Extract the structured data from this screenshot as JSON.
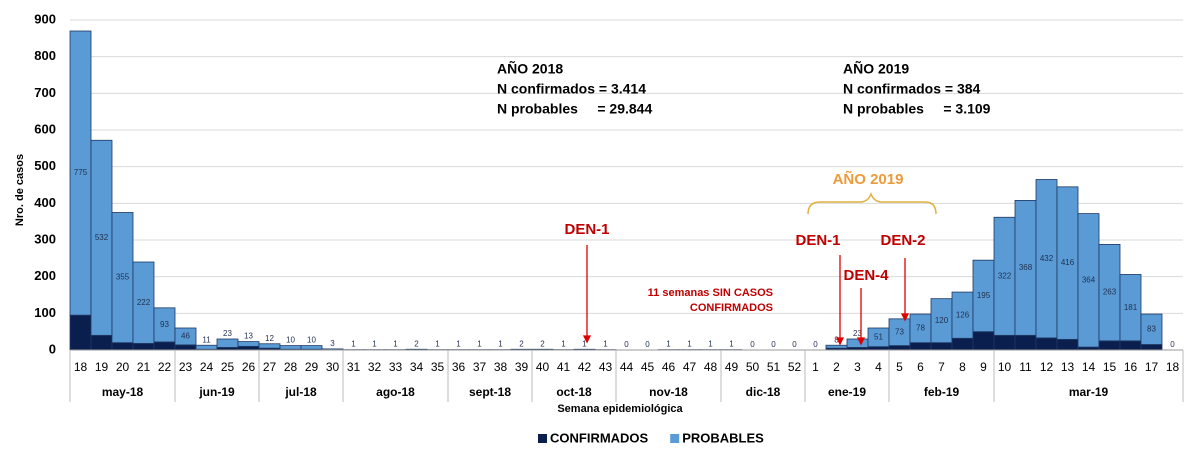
{
  "chart_data": {
    "type": "stacked_bar",
    "y_label": "Nro. de casos",
    "x_label": "Semana epidemiológica",
    "categories": [
      "18",
      "19",
      "20",
      "21",
      "22",
      "23",
      "24",
      "25",
      "26",
      "27",
      "28",
      "29",
      "30",
      "31",
      "32",
      "33",
      "34",
      "35",
      "36",
      "37",
      "38",
      "39",
      "40",
      "41",
      "42",
      "43",
      "44",
      "45",
      "46",
      "47",
      "48",
      "49",
      "50",
      "51",
      "52",
      "1",
      "2",
      "3",
      "4",
      "5",
      "6",
      "7",
      "8",
      "9",
      "10",
      "11",
      "12",
      "13",
      "14",
      "15",
      "16",
      "17",
      "18"
    ],
    "groups": [
      {
        "label": "may-18",
        "span": 5
      },
      {
        "label": "jun-19",
        "span": 4
      },
      {
        "label": "jul-18",
        "span": 4
      },
      {
        "label": "ago-18",
        "span": 5
      },
      {
        "label": "sept-18",
        "span": 4
      },
      {
        "label": "oct-18",
        "span": 4
      },
      {
        "label": "nov-18",
        "span": 5
      },
      {
        "label": "dic-18",
        "span": 4
      },
      {
        "label": "ene-19",
        "span": 4
      },
      {
        "label": "feb-19",
        "span": 5
      },
      {
        "label": "mar-19",
        "span": 9
      }
    ],
    "series": [
      {
        "name": "CONFIRMADOS",
        "color": "#0b1f4f",
        "values": [
          95,
          40,
          20,
          18,
          22,
          14,
          2,
          7,
          10,
          5,
          2,
          2,
          0,
          0,
          0,
          0,
          0,
          0,
          0,
          0,
          0,
          0,
          0,
          0,
          1,
          0,
          0,
          0,
          0,
          0,
          0,
          0,
          0,
          0,
          0,
          0,
          5,
          7,
          9,
          12,
          20,
          20,
          32,
          50,
          40,
          40,
          33,
          29,
          8,
          25,
          25,
          15,
          0
        ]
      },
      {
        "name": "PROBABLES",
        "color": "#5b9bd5",
        "values": [
          775,
          532,
          355,
          222,
          93,
          46,
          11,
          23,
          13,
          12,
          10,
          10,
          3,
          1,
          1,
          1,
          2,
          1,
          1,
          1,
          1,
          2,
          2,
          1,
          1,
          1,
          0,
          0,
          1,
          1,
          1,
          1,
          0,
          0,
          0,
          0,
          8,
          23,
          51,
          73,
          78,
          120,
          126,
          195,
          322,
          368,
          432,
          416,
          364,
          263,
          181,
          83,
          0
        ]
      }
    ],
    "ylim": [
      0,
      900
    ],
    "yticks": [
      0,
      100,
      200,
      300,
      400,
      500,
      600,
      700,
      800,
      900
    ],
    "grid": true,
    "annotations": {
      "y2018": [
        "AÑO 2018",
        "N confirmados = 3.414",
        "N probables     = 29.844"
      ],
      "y2019": [
        "AÑO 2019",
        "N confirmados = 384",
        "N probables     = 3.109"
      ],
      "bracket": "AÑO 2019",
      "den1_2018": "DEN-1",
      "den1_2019": "DEN-1",
      "den4": "DEN-4",
      "den2": "DEN-2",
      "no_cases": [
        "11 semanas SIN CASOS",
        "CONFIRMADOS"
      ]
    }
  }
}
